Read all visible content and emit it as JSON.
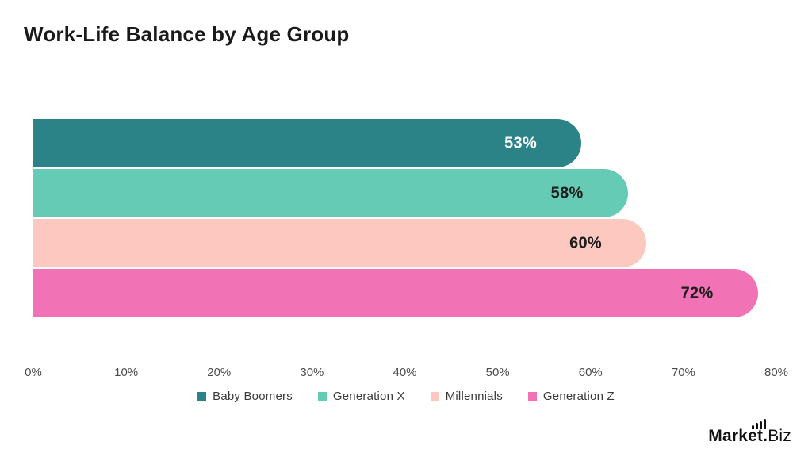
{
  "title": "Work-Life Balance by Age Group",
  "chart_data": {
    "type": "bar",
    "orientation": "horizontal",
    "title": "Work-Life Balance by Age Group",
    "categories": [
      "Baby Boomers",
      "Generation X",
      "Millennials",
      "Generation Z"
    ],
    "values": [
      53,
      58,
      60,
      72
    ],
    "value_labels": [
      "53%",
      "58%",
      "60%",
      "72%"
    ],
    "colors": [
      "#2b8287",
      "#66cbb4",
      "#fdc8c0",
      "#f272b6"
    ],
    "value_label_colors": [
      "#ffffff",
      "#1d1d1d",
      "#1d1d1d",
      "#1d1d1d"
    ],
    "xlabel": "",
    "ylabel": "",
    "xlim": [
      0,
      80
    ],
    "x_ticks": [
      "0%",
      "10%",
      "20%",
      "30%",
      "40%",
      "50%",
      "60%",
      "70%",
      "80%"
    ],
    "grid": false,
    "legend_position": "bottom"
  },
  "branding": {
    "bold": "Market.",
    "light": "Biz"
  }
}
